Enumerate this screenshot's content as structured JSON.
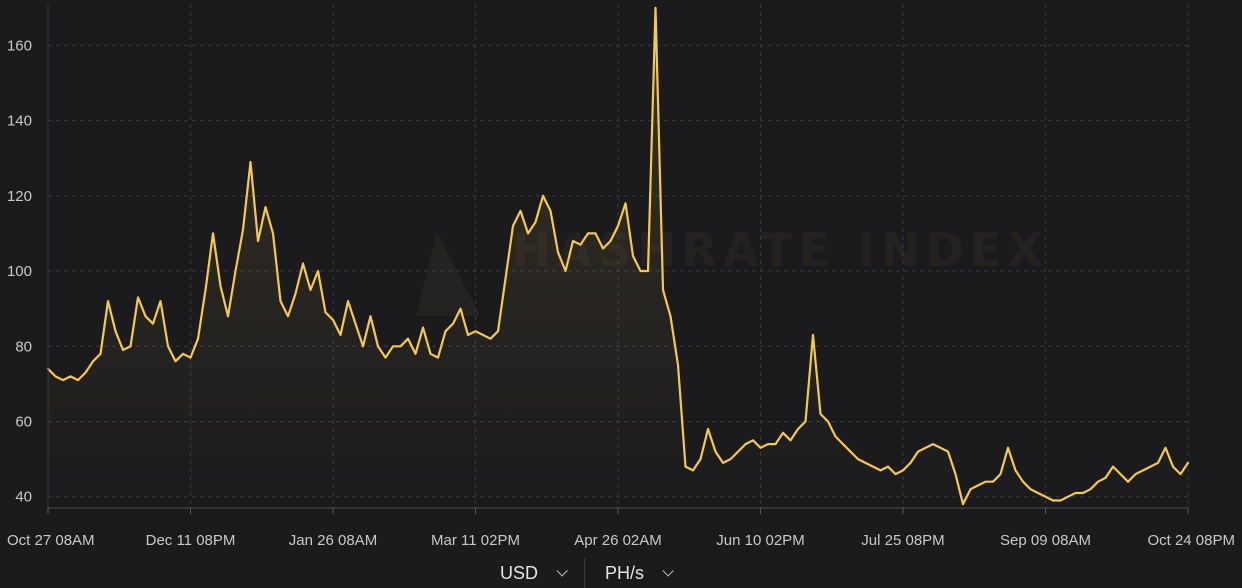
{
  "chart_data": {
    "type": "area",
    "color": "#f5c94a",
    "watermark": "HASHRATE INDEX",
    "x_ticks": [
      "Oct 27 08AM",
      "Dec 11 08PM",
      "Jan 26 08AM",
      "Mar 11 02PM",
      "Apr 26 02AM",
      "Jun 10 02PM",
      "Jul 25 08PM",
      "Sep 09 08AM",
      "Oct 24 08PM"
    ],
    "y_ticks": [
      40,
      60,
      80,
      100,
      120,
      140,
      160
    ],
    "ylim": [
      37,
      171
    ],
    "grid": true,
    "legend": "none",
    "series": [
      {
        "values": [
          74,
          72,
          71,
          72,
          71,
          73,
          76,
          78,
          92,
          84,
          79,
          80,
          93,
          88,
          86,
          92,
          80,
          76,
          78,
          77,
          82,
          95,
          110,
          96,
          88,
          100,
          111,
          129,
          108,
          117,
          110,
          92,
          88,
          94,
          102,
          95,
          100,
          89,
          87,
          83,
          92,
          86,
          80,
          88,
          80,
          77,
          80,
          80,
          82,
          78,
          85,
          78,
          77,
          84,
          86,
          90,
          83,
          84,
          83,
          82,
          84,
          98,
          112,
          116,
          110,
          113,
          120,
          116,
          105,
          100,
          108,
          107,
          110,
          110,
          106,
          108,
          112,
          118,
          104,
          100,
          100,
          170,
          95,
          88,
          75,
          48,
          47,
          50,
          58,
          52,
          49,
          50,
          52,
          54,
          55,
          53,
          54,
          54,
          57,
          55,
          58,
          60,
          83,
          62,
          60,
          56,
          54,
          52,
          50,
          49,
          48,
          47,
          48,
          46,
          47,
          49,
          52,
          53,
          54,
          53,
          52,
          46,
          38,
          42,
          43,
          44,
          44,
          46,
          53,
          47,
          44,
          42,
          41,
          40,
          39,
          39,
          40,
          41,
          41,
          42,
          44,
          45,
          48,
          46,
          44,
          46,
          47,
          48,
          49,
          53,
          48,
          46,
          49
        ]
      }
    ]
  },
  "controls": {
    "currency": "USD",
    "unit": "PH/s"
  }
}
